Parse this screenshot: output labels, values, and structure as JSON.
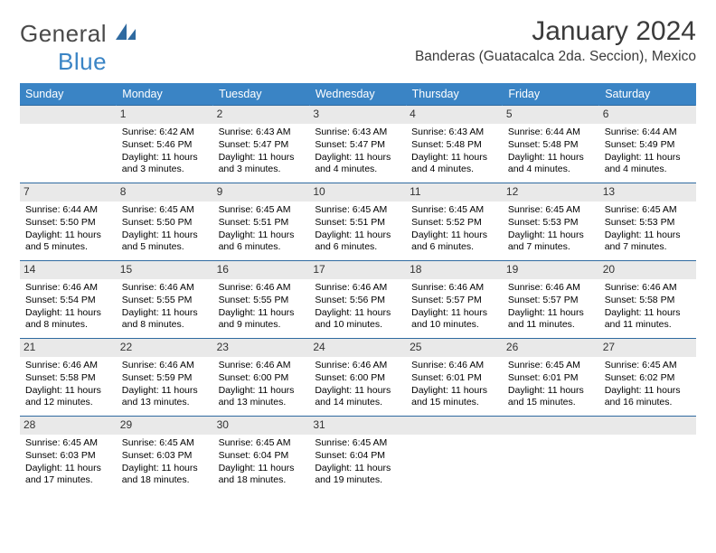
{
  "logo": {
    "general": "General",
    "blue": "Blue"
  },
  "title": {
    "month": "January 2024",
    "location": "Banderas (Guatacalca 2da. Seccion), Mexico"
  },
  "colors": {
    "header_bg": "#3a84c5",
    "header_fg": "#ffffff",
    "daynum_bg": "#e9e9e9",
    "rule": "#2f6aa0",
    "body_fg": "#000000",
    "page_bg": "#ffffff"
  },
  "day_headers": [
    "Sunday",
    "Monday",
    "Tuesday",
    "Wednesday",
    "Thursday",
    "Friday",
    "Saturday"
  ],
  "weeks": [
    [
      {
        "n": "",
        "sunrise": "",
        "sunset": "",
        "daylight": ""
      },
      {
        "n": "1",
        "sunrise": "Sunrise: 6:42 AM",
        "sunset": "Sunset: 5:46 PM",
        "daylight": "Daylight: 11 hours and 3 minutes."
      },
      {
        "n": "2",
        "sunrise": "Sunrise: 6:43 AM",
        "sunset": "Sunset: 5:47 PM",
        "daylight": "Daylight: 11 hours and 3 minutes."
      },
      {
        "n": "3",
        "sunrise": "Sunrise: 6:43 AM",
        "sunset": "Sunset: 5:47 PM",
        "daylight": "Daylight: 11 hours and 4 minutes."
      },
      {
        "n": "4",
        "sunrise": "Sunrise: 6:43 AM",
        "sunset": "Sunset: 5:48 PM",
        "daylight": "Daylight: 11 hours and 4 minutes."
      },
      {
        "n": "5",
        "sunrise": "Sunrise: 6:44 AM",
        "sunset": "Sunset: 5:48 PM",
        "daylight": "Daylight: 11 hours and 4 minutes."
      },
      {
        "n": "6",
        "sunrise": "Sunrise: 6:44 AM",
        "sunset": "Sunset: 5:49 PM",
        "daylight": "Daylight: 11 hours and 4 minutes."
      }
    ],
    [
      {
        "n": "7",
        "sunrise": "Sunrise: 6:44 AM",
        "sunset": "Sunset: 5:50 PM",
        "daylight": "Daylight: 11 hours and 5 minutes."
      },
      {
        "n": "8",
        "sunrise": "Sunrise: 6:45 AM",
        "sunset": "Sunset: 5:50 PM",
        "daylight": "Daylight: 11 hours and 5 minutes."
      },
      {
        "n": "9",
        "sunrise": "Sunrise: 6:45 AM",
        "sunset": "Sunset: 5:51 PM",
        "daylight": "Daylight: 11 hours and 6 minutes."
      },
      {
        "n": "10",
        "sunrise": "Sunrise: 6:45 AM",
        "sunset": "Sunset: 5:51 PM",
        "daylight": "Daylight: 11 hours and 6 minutes."
      },
      {
        "n": "11",
        "sunrise": "Sunrise: 6:45 AM",
        "sunset": "Sunset: 5:52 PM",
        "daylight": "Daylight: 11 hours and 6 minutes."
      },
      {
        "n": "12",
        "sunrise": "Sunrise: 6:45 AM",
        "sunset": "Sunset: 5:53 PM",
        "daylight": "Daylight: 11 hours and 7 minutes."
      },
      {
        "n": "13",
        "sunrise": "Sunrise: 6:45 AM",
        "sunset": "Sunset: 5:53 PM",
        "daylight": "Daylight: 11 hours and 7 minutes."
      }
    ],
    [
      {
        "n": "14",
        "sunrise": "Sunrise: 6:46 AM",
        "sunset": "Sunset: 5:54 PM",
        "daylight": "Daylight: 11 hours and 8 minutes."
      },
      {
        "n": "15",
        "sunrise": "Sunrise: 6:46 AM",
        "sunset": "Sunset: 5:55 PM",
        "daylight": "Daylight: 11 hours and 8 minutes."
      },
      {
        "n": "16",
        "sunrise": "Sunrise: 6:46 AM",
        "sunset": "Sunset: 5:55 PM",
        "daylight": "Daylight: 11 hours and 9 minutes."
      },
      {
        "n": "17",
        "sunrise": "Sunrise: 6:46 AM",
        "sunset": "Sunset: 5:56 PM",
        "daylight": "Daylight: 11 hours and 10 minutes."
      },
      {
        "n": "18",
        "sunrise": "Sunrise: 6:46 AM",
        "sunset": "Sunset: 5:57 PM",
        "daylight": "Daylight: 11 hours and 10 minutes."
      },
      {
        "n": "19",
        "sunrise": "Sunrise: 6:46 AM",
        "sunset": "Sunset: 5:57 PM",
        "daylight": "Daylight: 11 hours and 11 minutes."
      },
      {
        "n": "20",
        "sunrise": "Sunrise: 6:46 AM",
        "sunset": "Sunset: 5:58 PM",
        "daylight": "Daylight: 11 hours and 11 minutes."
      }
    ],
    [
      {
        "n": "21",
        "sunrise": "Sunrise: 6:46 AM",
        "sunset": "Sunset: 5:58 PM",
        "daylight": "Daylight: 11 hours and 12 minutes."
      },
      {
        "n": "22",
        "sunrise": "Sunrise: 6:46 AM",
        "sunset": "Sunset: 5:59 PM",
        "daylight": "Daylight: 11 hours and 13 minutes."
      },
      {
        "n": "23",
        "sunrise": "Sunrise: 6:46 AM",
        "sunset": "Sunset: 6:00 PM",
        "daylight": "Daylight: 11 hours and 13 minutes."
      },
      {
        "n": "24",
        "sunrise": "Sunrise: 6:46 AM",
        "sunset": "Sunset: 6:00 PM",
        "daylight": "Daylight: 11 hours and 14 minutes."
      },
      {
        "n": "25",
        "sunrise": "Sunrise: 6:46 AM",
        "sunset": "Sunset: 6:01 PM",
        "daylight": "Daylight: 11 hours and 15 minutes."
      },
      {
        "n": "26",
        "sunrise": "Sunrise: 6:45 AM",
        "sunset": "Sunset: 6:01 PM",
        "daylight": "Daylight: 11 hours and 15 minutes."
      },
      {
        "n": "27",
        "sunrise": "Sunrise: 6:45 AM",
        "sunset": "Sunset: 6:02 PM",
        "daylight": "Daylight: 11 hours and 16 minutes."
      }
    ],
    [
      {
        "n": "28",
        "sunrise": "Sunrise: 6:45 AM",
        "sunset": "Sunset: 6:03 PM",
        "daylight": "Daylight: 11 hours and 17 minutes."
      },
      {
        "n": "29",
        "sunrise": "Sunrise: 6:45 AM",
        "sunset": "Sunset: 6:03 PM",
        "daylight": "Daylight: 11 hours and 18 minutes."
      },
      {
        "n": "30",
        "sunrise": "Sunrise: 6:45 AM",
        "sunset": "Sunset: 6:04 PM",
        "daylight": "Daylight: 11 hours and 18 minutes."
      },
      {
        "n": "31",
        "sunrise": "Sunrise: 6:45 AM",
        "sunset": "Sunset: 6:04 PM",
        "daylight": "Daylight: 11 hours and 19 minutes."
      },
      {
        "n": "",
        "sunrise": "",
        "sunset": "",
        "daylight": ""
      },
      {
        "n": "",
        "sunrise": "",
        "sunset": "",
        "daylight": ""
      },
      {
        "n": "",
        "sunrise": "",
        "sunset": "",
        "daylight": ""
      }
    ]
  ]
}
